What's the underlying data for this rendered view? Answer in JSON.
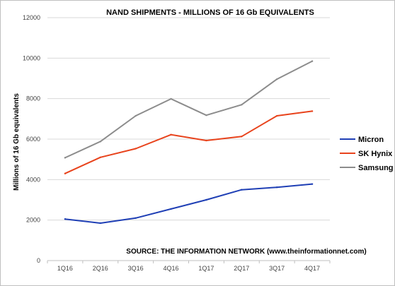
{
  "chart_data": {
    "type": "line",
    "title": "NAND SHIPMENTS - MILLIONS OF 16 Gb EQUIVALENTS",
    "ylabel": "Millions of 16 Gb equivalents",
    "xlabel": "",
    "categories": [
      "1Q16",
      "2Q16",
      "3Q16",
      "4Q16",
      "1Q17",
      "2Q17",
      "3Q17",
      "4Q17"
    ],
    "ylim": [
      0,
      12000
    ],
    "yticks": [
      0,
      2000,
      4000,
      6000,
      8000,
      10000,
      12000
    ],
    "ytick_labels": [
      "0",
      "2000",
      "4000",
      "6000",
      "8000",
      "10000",
      "12000"
    ],
    "grid": true,
    "legend_position": "right",
    "series": [
      {
        "name": "Micron",
        "color": "#1f3fb5",
        "values": [
          2050,
          1850,
          2100,
          2550,
          3000,
          3500,
          3620,
          3780
        ]
      },
      {
        "name": "SK Hynix",
        "color": "#e8431c",
        "values": [
          4300,
          5100,
          5530,
          6220,
          5930,
          6130,
          7150,
          7380
        ]
      },
      {
        "name": "Samsung",
        "color": "#8c8c8c",
        "values": [
          5080,
          5880,
          7150,
          7990,
          7180,
          7700,
          8960,
          9850
        ]
      }
    ],
    "annotation": "SOURCE: THE INFORMATION NETWORK (www.theinformationnet.com)"
  }
}
